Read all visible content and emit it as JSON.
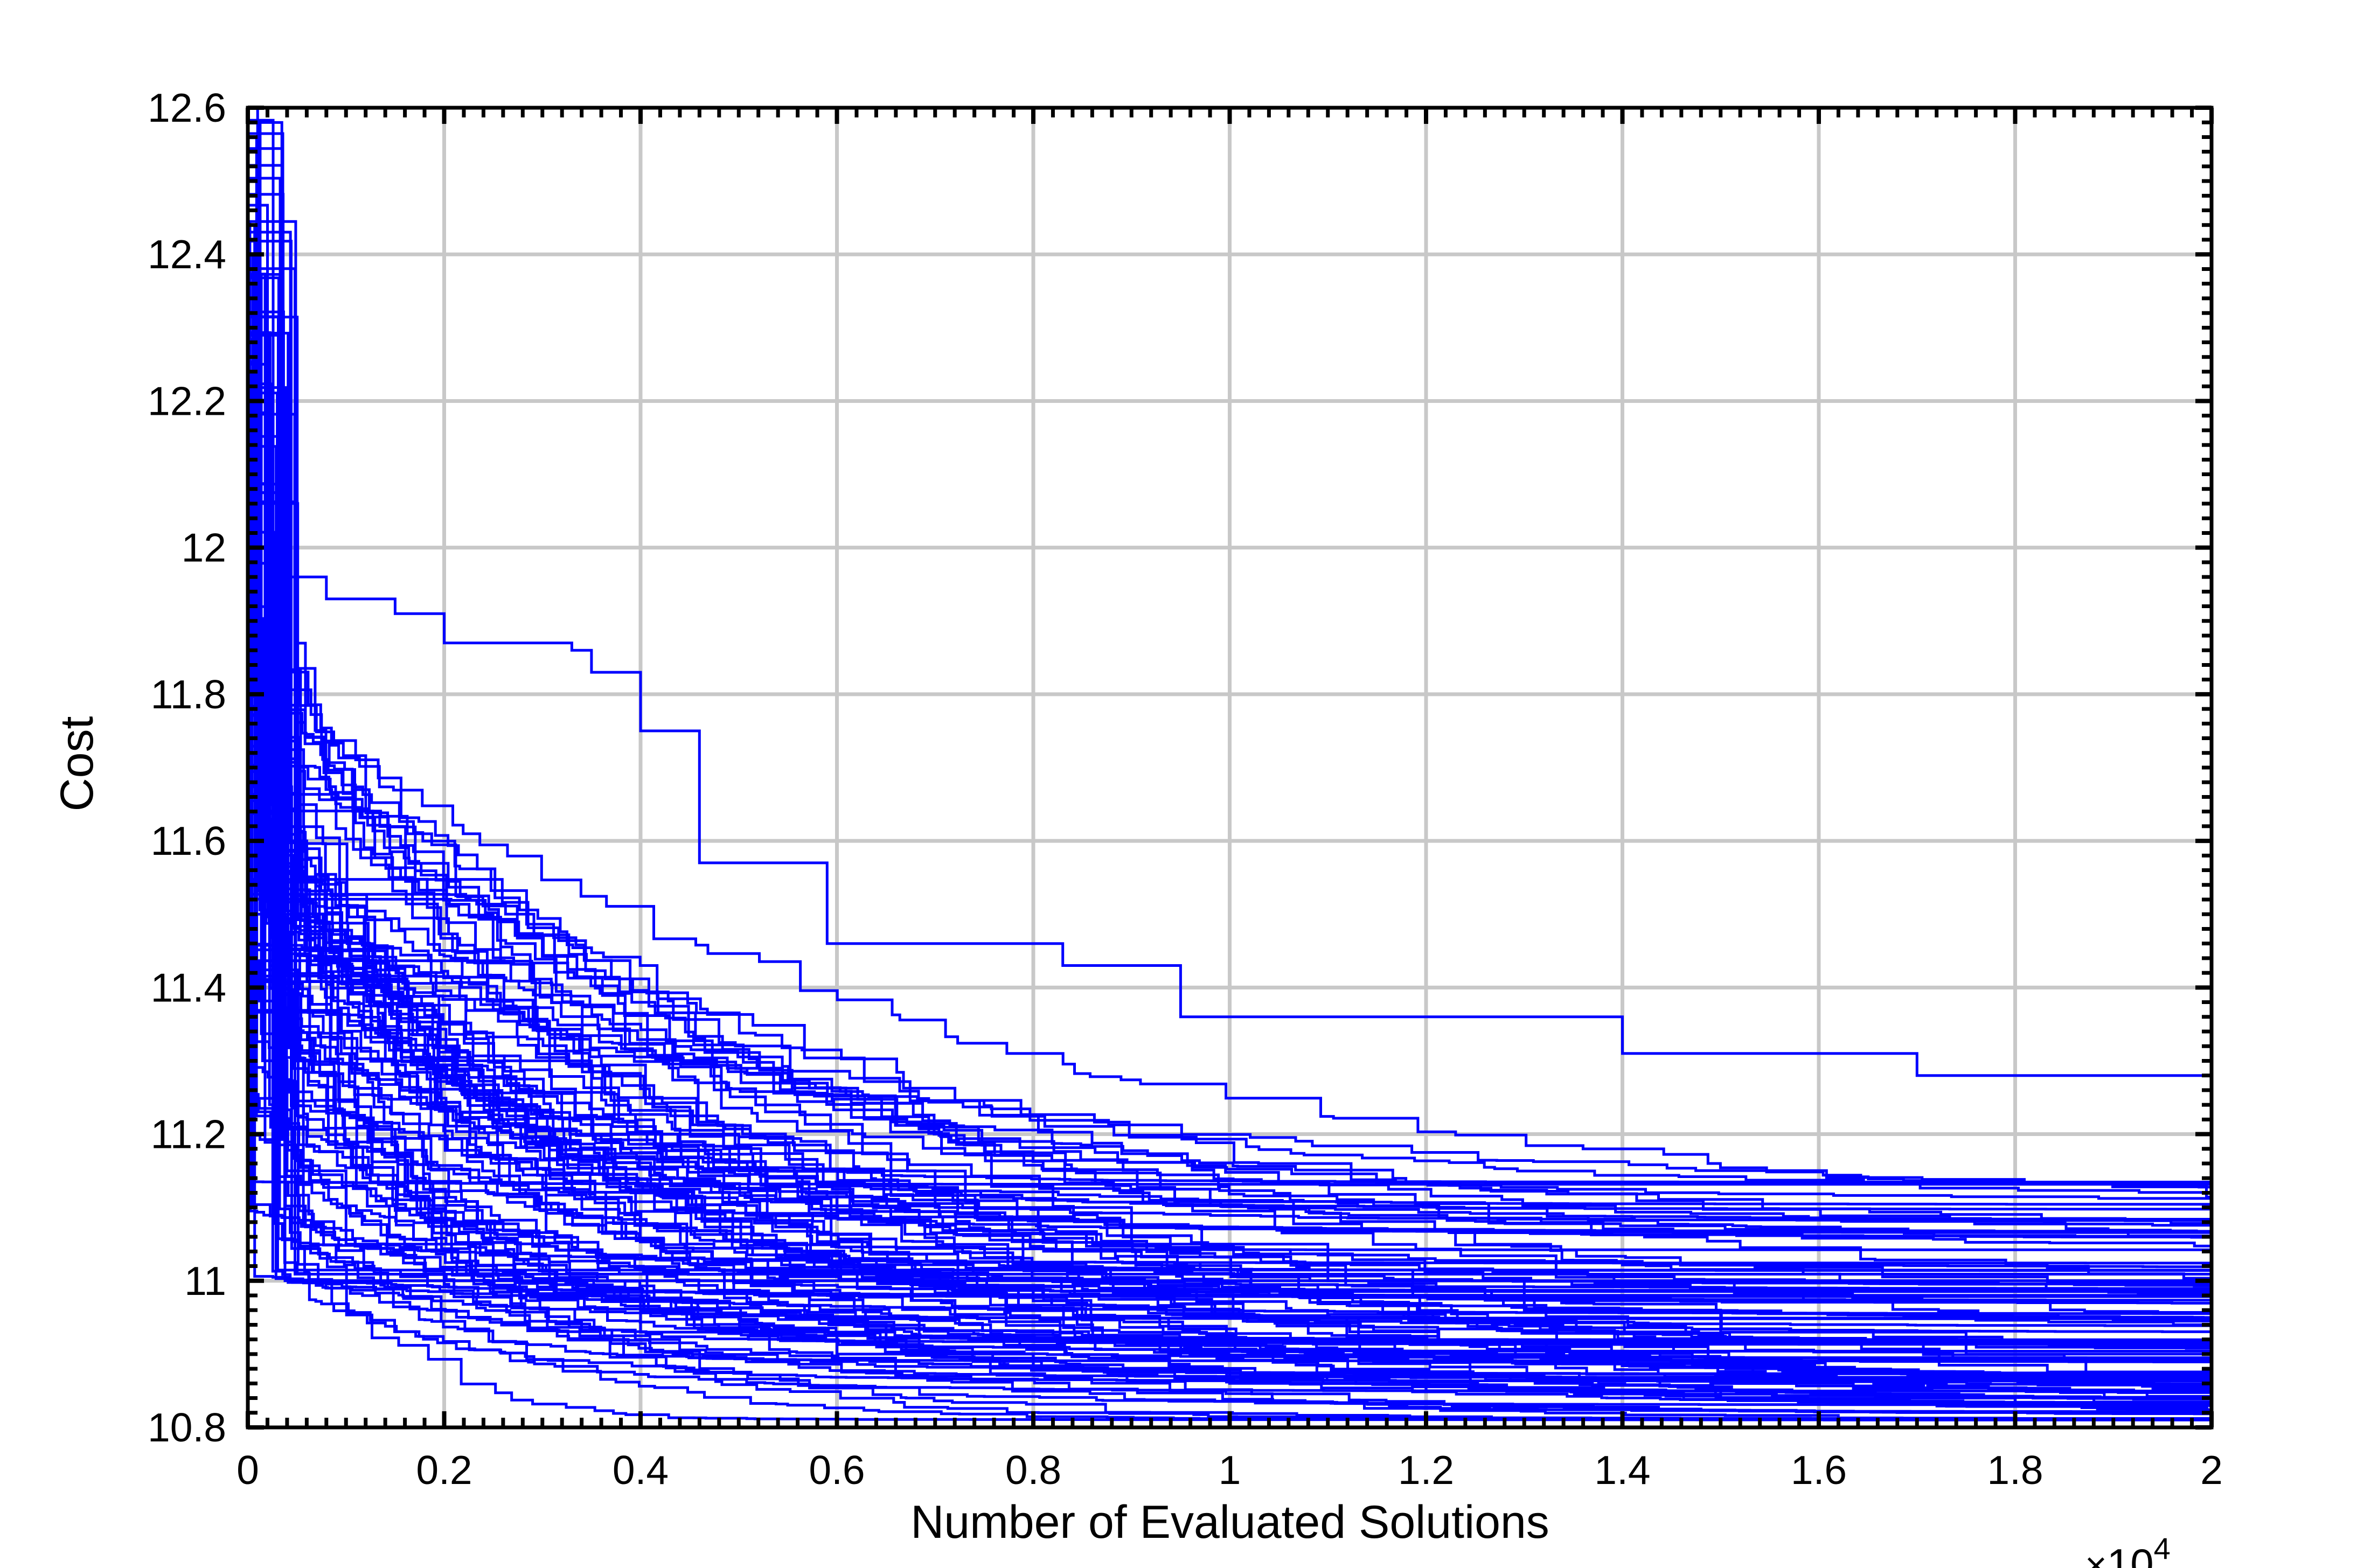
{
  "chart_data": {
    "type": "line",
    "title": "",
    "xlabel": "Number of Evaluated Solutions",
    "ylabel": "Cost",
    "x_exponent_label": {
      "base": "10",
      "exponent": "4",
      "prefix": "×"
    },
    "xlim": [
      0,
      20000
    ],
    "ylim": [
      10.8,
      12.6
    ],
    "x_ticks": [
      0,
      2000,
      4000,
      6000,
      8000,
      10000,
      12000,
      14000,
      16000,
      18000,
      20000
    ],
    "x_tick_labels": [
      "0",
      "0.2",
      "0.4",
      "0.6",
      "0.8",
      "1",
      "1.2",
      "1.4",
      "1.6",
      "1.8",
      "2"
    ],
    "y_ticks": [
      10.8,
      11.0,
      11.2,
      11.4,
      11.6,
      11.8,
      12.0,
      12.2,
      12.4,
      12.6
    ],
    "y_tick_labels": [
      "10.8",
      "11",
      "11.2",
      "11.4",
      "11.6",
      "11.8",
      "12",
      "12.2",
      "12.4",
      "12.6"
    ],
    "grid": true,
    "legend": "none",
    "line_color": "#0000ff",
    "run_count": 100,
    "series_description": "100 independent runs; each run is a monotonically non-increasing step curve of best cost found versus number of evaluated solutions",
    "series_summary": [
      {
        "x": [
          0,
          100,
          300,
          800,
          1500,
          2000,
          3300,
          3500,
          4000,
          4600,
          5900,
          8300,
          9500,
          14000,
          17000,
          18000,
          20000
        ],
        "y": [
          12.6,
          12.0,
          11.96,
          11.93,
          11.91,
          11.87,
          11.86,
          11.83,
          11.75,
          11.57,
          11.46,
          11.43,
          11.36,
          11.31,
          11.28,
          11.28,
          11.27
        ]
      },
      {
        "x": [
          0,
          50,
          200,
          600,
          1400,
          3500,
          5000,
          7000,
          9000,
          11000,
          13000,
          15000,
          17500,
          20000
        ],
        "y": [
          12.4,
          11.8,
          11.6,
          11.45,
          11.3,
          11.2,
          11.15,
          11.1,
          11.05,
          11.0,
          10.96,
          10.93,
          10.9,
          10.88
        ]
      },
      {
        "x": [
          0,
          40,
          150,
          400,
          1000,
          2500,
          4000,
          6000,
          8000,
          10000,
          12000,
          15000,
          18000,
          20000
        ],
        "y": [
          12.2,
          11.5,
          11.3,
          11.15,
          11.05,
          10.98,
          10.93,
          10.9,
          10.88,
          10.86,
          10.85,
          10.84,
          10.83,
          10.82
        ]
      }
    ]
  }
}
